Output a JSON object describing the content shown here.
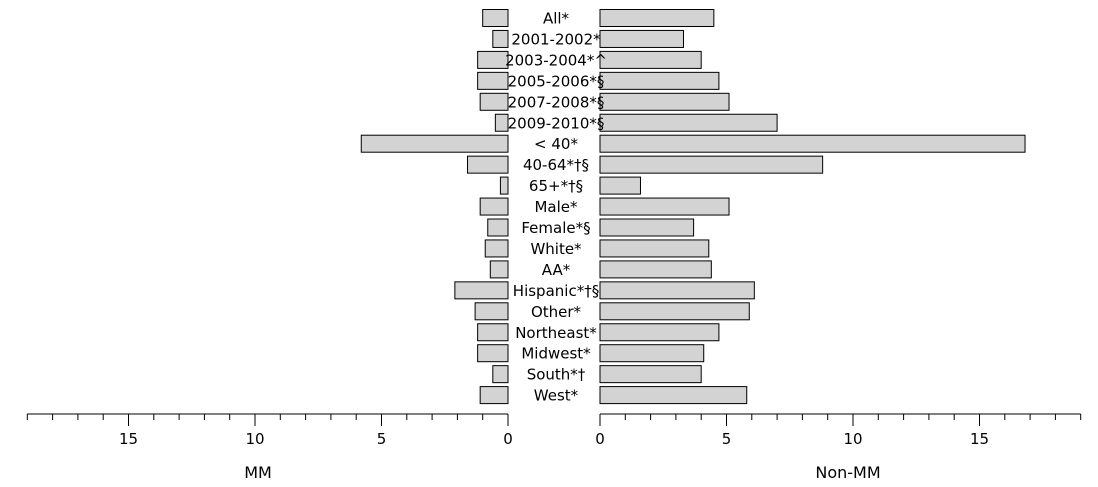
{
  "chart_data": {
    "type": "bar",
    "orientation": "horizontal-back-to-back",
    "categories": [
      "All*",
      "2001-2002*",
      "2003-2004*^",
      "2005-2006*§",
      "2007-2008*§",
      "2009-2010*§",
      "< 40*",
      "40-64*†§",
      "65+*†§",
      "Male*",
      "Female*§",
      "White*",
      "AA*",
      "Hispanic*†§",
      "Other*",
      "Northeast*",
      "Midwest*",
      "South*†",
      "West*"
    ],
    "series": [
      {
        "name": "MM",
        "values": [
          1.0,
          0.6,
          1.2,
          1.2,
          1.1,
          0.5,
          5.8,
          1.6,
          0.3,
          1.1,
          0.8,
          0.9,
          0.7,
          2.1,
          1.3,
          1.2,
          1.2,
          0.6,
          1.1
        ]
      },
      {
        "name": "Non-MM",
        "values": [
          4.5,
          3.3,
          4.0,
          4.7,
          5.1,
          7.0,
          16.8,
          8.8,
          1.6,
          5.1,
          3.7,
          4.3,
          4.4,
          6.1,
          5.9,
          4.7,
          4.1,
          4.0,
          5.8
        ]
      }
    ],
    "xlabel_left": "MM",
    "xlabel_right": "Non-MM",
    "xlim_left": [
      19,
      0
    ],
    "xlim_right": [
      0,
      19
    ],
    "ticks_labeled": [
      15,
      10,
      5,
      0
    ],
    "ticks_right_labeled": [
      0,
      5,
      10,
      15
    ],
    "bar_color": "#d3d3d3"
  }
}
